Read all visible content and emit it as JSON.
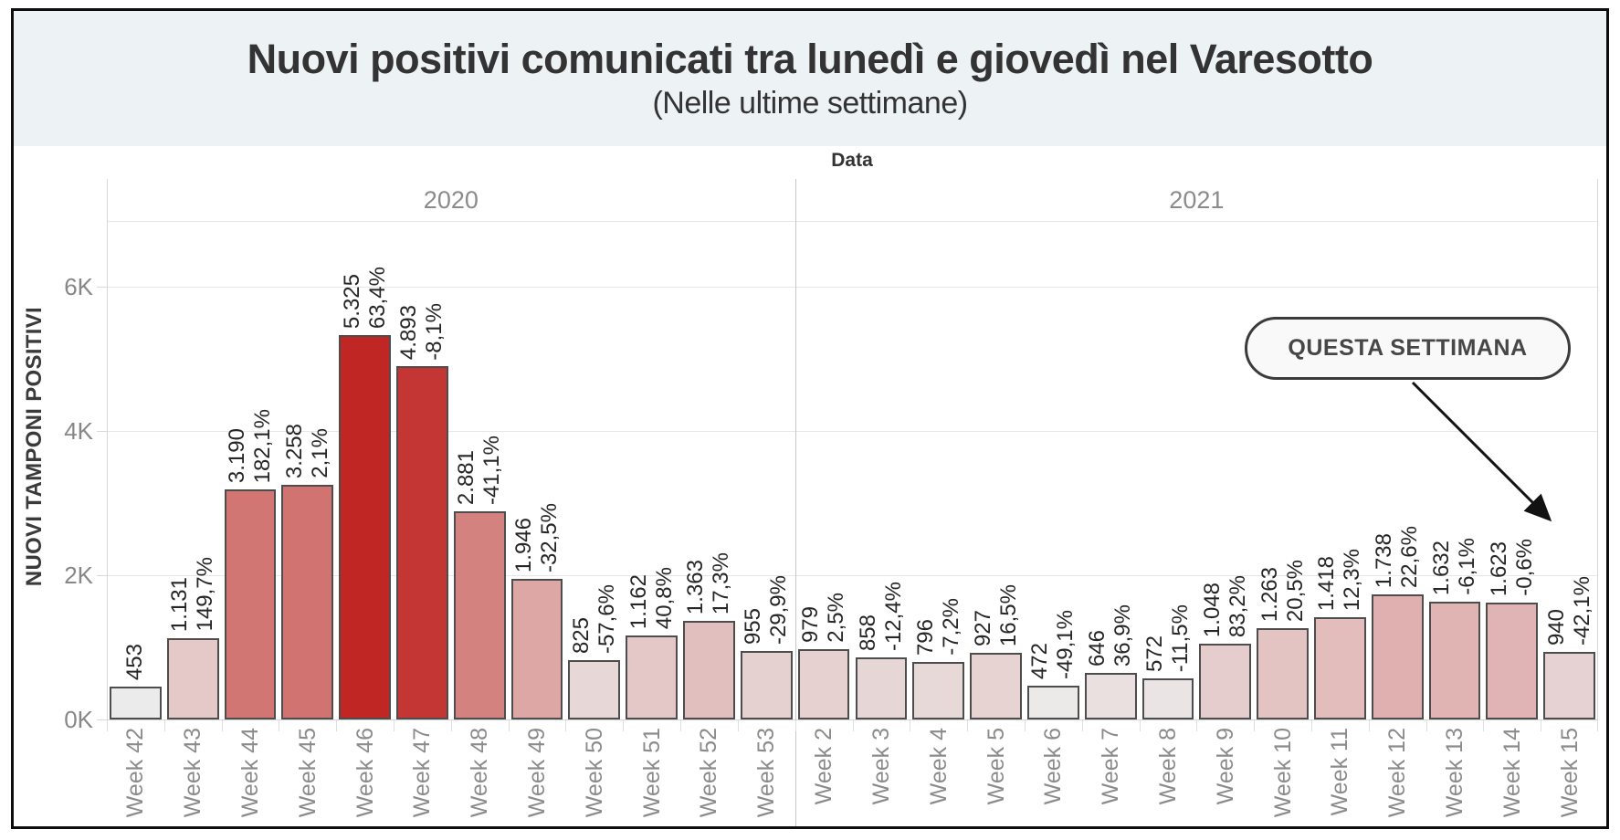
{
  "title": {
    "text": "Nuovi positivi comunicati tra lunedì e giovedì nel Varesotto",
    "subtitle": "(Nelle ultime settimane)"
  },
  "colors": {
    "title_band_bg": "#edf3f4",
    "bar_low": "#ecebeb",
    "bar_high": "#c02623",
    "bar_border": "#4d4d4d",
    "axis_text": "#8b8b8b",
    "label_text": "#262626"
  },
  "chart_data": {
    "type": "bar",
    "title": "Nuovi positivi comunicati tra lunedì e giovedì nel Varesotto",
    "subtitle": "(Nelle ultime settimane)",
    "x_header": "Data",
    "xlabel": "Data",
    "ylabel": "NUOVI TAMPONI POSITIVI",
    "ylim": [
      0,
      6900
    ],
    "grid": true,
    "y_ticks": [
      {
        "label": "0K",
        "value": 0
      },
      {
        "label": "2K",
        "value": 2000
      },
      {
        "label": "4K",
        "value": 4000
      },
      {
        "label": "6K",
        "value": 6000
      }
    ],
    "year_sections": [
      {
        "label": "2020",
        "weeks": 12
      },
      {
        "label": "2021",
        "weeks": 14
      }
    ],
    "bar_color_scale": {
      "low": "#ecebeb",
      "high": "#c02623",
      "domain": [
        450,
        5325
      ]
    },
    "annotation": {
      "text": "QUESTA SETTIMANA",
      "points_to": "Week 15"
    },
    "bars": [
      {
        "week": "Week 42",
        "year": "2020",
        "value": 453,
        "label": "453",
        "pct": null
      },
      {
        "week": "Week 43",
        "year": "2020",
        "value": 1131,
        "label": "1.131",
        "pct": "149,7%"
      },
      {
        "week": "Week 44",
        "year": "2020",
        "value": 3190,
        "label": "3.190",
        "pct": "182,1%"
      },
      {
        "week": "Week 45",
        "year": "2020",
        "value": 3258,
        "label": "3.258",
        "pct": "2,1%"
      },
      {
        "week": "Week 46",
        "year": "2020",
        "value": 5325,
        "label": "5.325",
        "pct": "63,4%"
      },
      {
        "week": "Week 47",
        "year": "2020",
        "value": 4893,
        "label": "4.893",
        "pct": "-8,1%"
      },
      {
        "week": "Week 48",
        "year": "2020",
        "value": 2881,
        "label": "2.881",
        "pct": "-41,1%"
      },
      {
        "week": "Week 49",
        "year": "2020",
        "value": 1946,
        "label": "1.946",
        "pct": "-32,5%"
      },
      {
        "week": "Week 50",
        "year": "2020",
        "value": 825,
        "label": "825",
        "pct": "-57,6%"
      },
      {
        "week": "Week 51",
        "year": "2020",
        "value": 1162,
        "label": "1.162",
        "pct": "40,8%"
      },
      {
        "week": "Week 52",
        "year": "2020",
        "value": 1363,
        "label": "1.363",
        "pct": "17,3%"
      },
      {
        "week": "Week 53",
        "year": "2020",
        "value": 955,
        "label": "955",
        "pct": "-29,9%"
      },
      {
        "week": "Week 2",
        "year": "2021",
        "value": 979,
        "label": "979",
        "pct": "2,5%"
      },
      {
        "week": "Week 3",
        "year": "2021",
        "value": 858,
        "label": "858",
        "pct": "-12,4%"
      },
      {
        "week": "Week 4",
        "year": "2021",
        "value": 796,
        "label": "796",
        "pct": "-7,2%"
      },
      {
        "week": "Week 5",
        "year": "2021",
        "value": 927,
        "label": "927",
        "pct": "16,5%"
      },
      {
        "week": "Week 6",
        "year": "2021",
        "value": 472,
        "label": "472",
        "pct": "-49,1%"
      },
      {
        "week": "Week 7",
        "year": "2021",
        "value": 646,
        "label": "646",
        "pct": "36,9%"
      },
      {
        "week": "Week 8",
        "year": "2021",
        "value": 572,
        "label": "572",
        "pct": "-11,5%"
      },
      {
        "week": "Week 9",
        "year": "2021",
        "value": 1048,
        "label": "1.048",
        "pct": "83,2%"
      },
      {
        "week": "Week 10",
        "year": "2021",
        "value": 1263,
        "label": "1.263",
        "pct": "20,5%"
      },
      {
        "week": "Week 11",
        "year": "2021",
        "value": 1418,
        "label": "1.418",
        "pct": "12,3%"
      },
      {
        "week": "Week 12",
        "year": "2021",
        "value": 1738,
        "label": "1.738",
        "pct": "22,6%"
      },
      {
        "week": "Week 13",
        "year": "2021",
        "value": 1632,
        "label": "1.632",
        "pct": "-6,1%"
      },
      {
        "week": "Week 14",
        "year": "2021",
        "value": 1623,
        "label": "1.623",
        "pct": "-0,6%"
      },
      {
        "week": "Week 15",
        "year": "2021",
        "value": 940,
        "label": "940",
        "pct": "-42,1%"
      }
    ]
  }
}
